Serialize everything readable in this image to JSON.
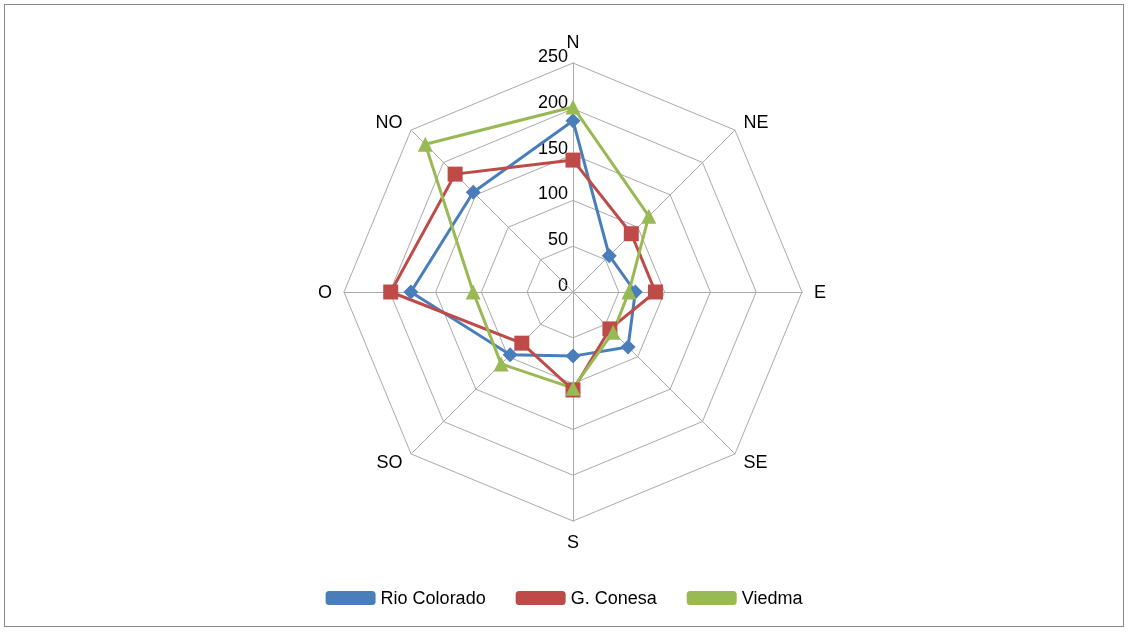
{
  "chart_data": {
    "type": "radar",
    "categories": [
      "N",
      "NE",
      "E",
      "SE",
      "S",
      "SO",
      "O",
      "NO"
    ],
    "ylim": [
      0,
      250
    ],
    "yticks": [
      0,
      50,
      100,
      150,
      200,
      250
    ],
    "legend": "bottom",
    "grid": true,
    "series": [
      {
        "name": "Rio Colorado",
        "color": "#4a7ebb",
        "marker": "diamond",
        "values": [
          187,
          56,
          68,
          85,
          70,
          97,
          177,
          154
        ]
      },
      {
        "name": "G. Conesa",
        "color": "#be4b48",
        "marker": "square",
        "values": [
          144,
          90,
          90,
          57,
          107,
          79,
          199,
          182
        ]
      },
      {
        "name": "Viedma",
        "color": "#98b954",
        "marker": "triangle",
        "values": [
          202,
          117,
          61,
          62,
          105,
          111,
          109,
          228
        ]
      }
    ]
  }
}
